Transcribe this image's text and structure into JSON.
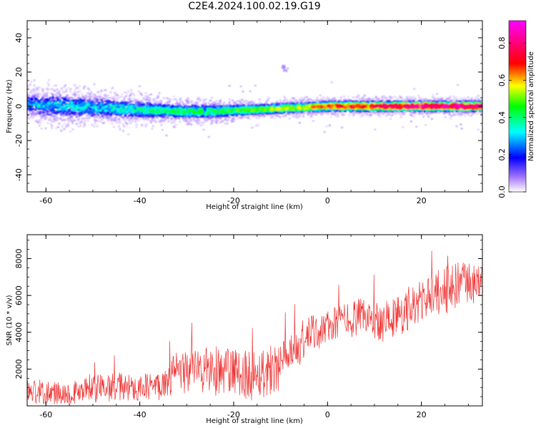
{
  "title": "C2E4.2024.100.02.19.G19",
  "chart_data": [
    {
      "type": "heatmap",
      "xlabel": "Height of straight line (km)",
      "ylabel": "Frequency (Hz)",
      "xlim": [
        -64,
        33
      ],
      "ylim": [
        -50,
        50
      ],
      "xticks": [
        -60,
        -40,
        -20,
        0,
        20
      ],
      "yticks": [
        -40,
        -20,
        0,
        20,
        40
      ],
      "xtick_labels": [
        "-60",
        "-40",
        "-20",
        "0",
        "20"
      ],
      "ytick_labels": [
        "-40",
        "-20",
        "0",
        "20",
        "40"
      ],
      "ridge": {
        "x": [
          -64,
          -56,
          -48,
          -40,
          -32,
          -24,
          -16,
          -8,
          0,
          8,
          16,
          24,
          33
        ],
        "freq": [
          1,
          0,
          -1,
          -2,
          -3,
          -3,
          -2,
          -1,
          0,
          0,
          0,
          0,
          0
        ],
        "amplitude": [
          0.25,
          0.3,
          0.3,
          0.35,
          0.4,
          0.4,
          0.45,
          0.5,
          0.6,
          0.65,
          0.7,
          0.75,
          0.75
        ],
        "spread_hz": [
          7,
          7,
          6,
          5,
          4,
          4,
          3,
          3,
          3,
          3,
          3,
          3,
          3
        ]
      },
      "isolated_blob": {
        "x": -9,
        "freq": 22,
        "amplitude": 0.08
      },
      "colorbar": {
        "label": "Normalized spectral amplitude",
        "range": [
          0,
          0.92
        ],
        "ticks": [
          0.0,
          0.2,
          0.4,
          0.6,
          0.8
        ],
        "tick_labels": [
          "0.0",
          "0.2",
          "0.4",
          "0.6",
          "0.8"
        ]
      }
    },
    {
      "type": "line",
      "xlabel": "Height of straight line (km)",
      "ylabel": "SNR (10 * v/v)",
      "xlim": [
        -64,
        33
      ],
      "ylim": [
        0,
        9300
      ],
      "xticks": [
        -60,
        -40,
        -20,
        0,
        20
      ],
      "yticks": [
        2000,
        4000,
        6000,
        8000
      ],
      "xtick_labels": [
        "-60",
        "-40",
        "-20",
        "0",
        "20"
      ],
      "ytick_labels": [
        "2000",
        "4000",
        "6000",
        "8000"
      ],
      "color": "#ee3333",
      "series": [
        {
          "x": [
            -64,
            -60,
            -56,
            -52,
            -48,
            -44,
            -40,
            -36,
            -32,
            -28,
            -24,
            -20,
            -16,
            -12,
            -8,
            -4,
            0,
            4,
            8,
            12,
            16,
            20,
            24,
            28,
            33
          ],
          "mean": [
            800,
            700,
            700,
            800,
            1000,
            1000,
            1000,
            1100,
            1800,
            2000,
            1900,
            1800,
            1700,
            2000,
            2500,
            3800,
            4300,
            4700,
            4800,
            4600,
            5000,
            5700,
            6200,
            6500,
            6800
          ],
          "noise": [
            900,
            700,
            700,
            800,
            900,
            900,
            800,
            900,
            1300,
            1500,
            1500,
            1500,
            1600,
            1600,
            1400,
            1200,
            1000,
            1100,
            1200,
            1300,
            1300,
            1300,
            1400,
            1500,
            1100
          ]
        }
      ]
    }
  ]
}
